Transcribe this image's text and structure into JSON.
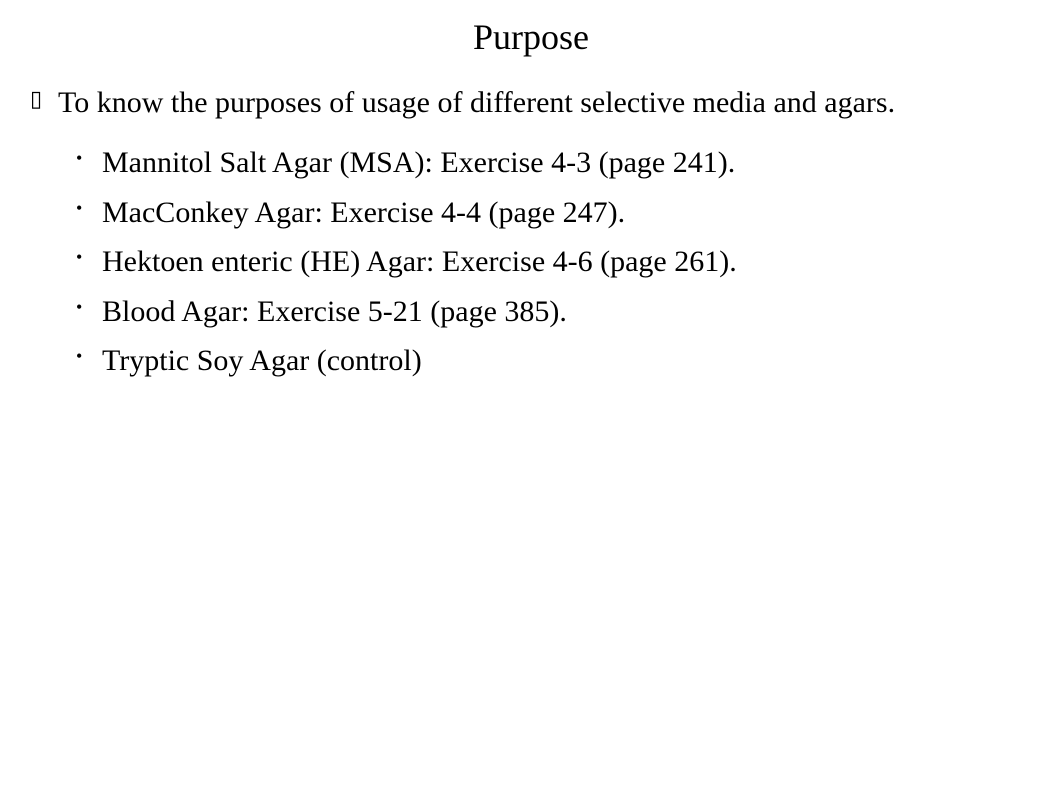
{
  "title": "Purpose",
  "main_point": "To know the purposes of usage of different selective media and agars.",
  "sub_points": [
    "Mannitol Salt Agar (MSA): Exercise 4-3 (page 241).",
    "MacConkey Agar: Exercise 4-4 (page 247).",
    "Hektoen enteric (HE) Agar: Exercise 4-6 (page 261).",
    "Blood Agar: Exercise 5-21 (page 385).",
    "Tryptic Soy Agar (control)"
  ],
  "styling": {
    "background_color": "#ffffff",
    "text_color": "#000000",
    "title_fontsize": 36,
    "body_fontsize": 30,
    "font_family": "Times New Roman",
    "outer_bullet_style": "hollow-rectangle",
    "inner_bullet_style": "disc"
  }
}
